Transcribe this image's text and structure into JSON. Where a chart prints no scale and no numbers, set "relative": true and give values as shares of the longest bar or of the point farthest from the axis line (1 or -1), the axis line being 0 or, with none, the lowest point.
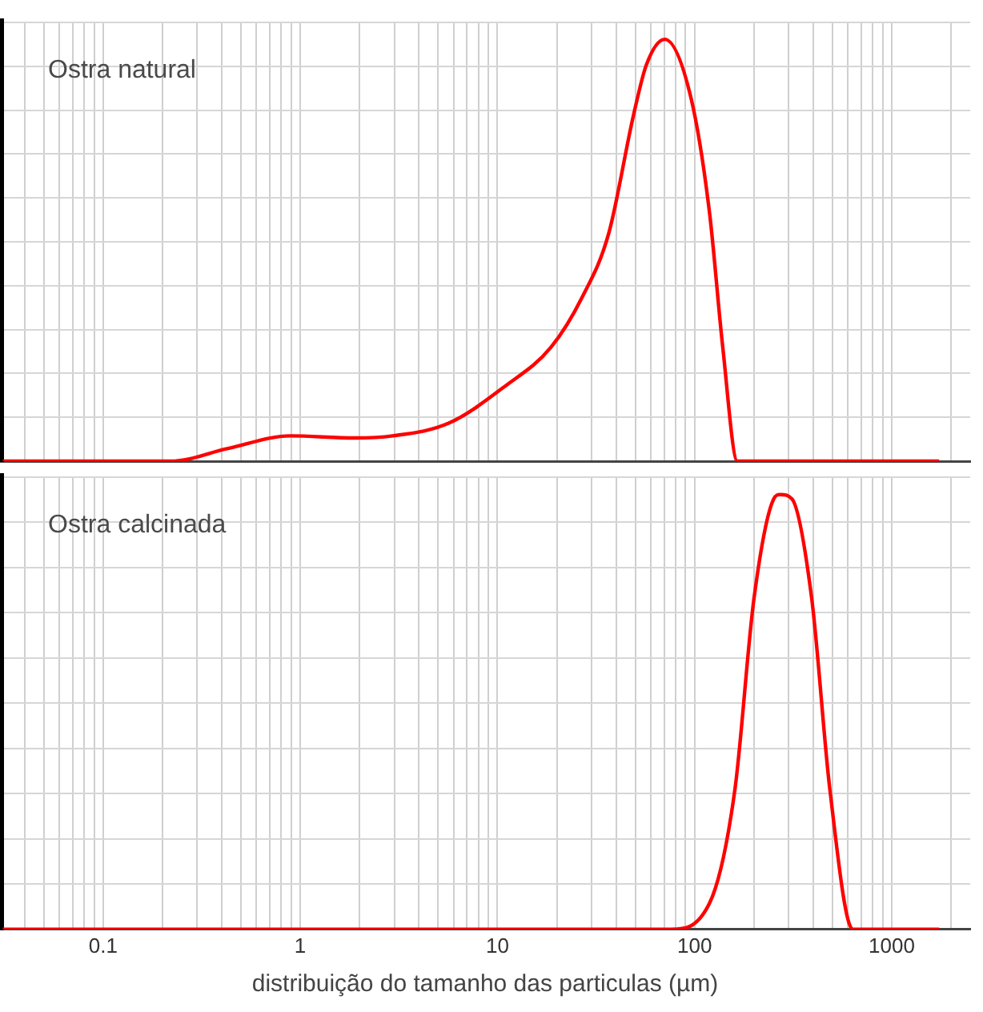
{
  "chart_data": [
    {
      "type": "line",
      "annotations": [
        "Ostra natural"
      ],
      "relative": true,
      "log": "x",
      "grid": true,
      "tick_labels": false,
      "xlim": [
        0.03,
        2500
      ],
      "xticks": [
        {
          "value": 0.04,
          "label": null
        },
        {
          "value": 0.05,
          "label": null
        },
        {
          "value": 0.06,
          "label": null
        },
        {
          "value": 0.07,
          "label": null
        },
        {
          "value": 0.08,
          "label": null
        },
        {
          "value": 0.09,
          "label": null
        },
        0.1,
        {
          "value": 0.2,
          "label": null
        },
        {
          "value": 0.3,
          "label": null
        },
        {
          "value": 0.4,
          "label": null
        },
        {
          "value": 0.5,
          "label": null
        },
        {
          "value": 0.6,
          "label": null
        },
        {
          "value": 0.7,
          "label": null
        },
        {
          "value": 0.8,
          "label": null
        },
        {
          "value": 0.9,
          "label": null
        },
        1,
        {
          "value": 2,
          "label": null
        },
        {
          "value": 3,
          "label": null
        },
        {
          "value": 4,
          "label": null
        },
        {
          "value": 5,
          "label": null
        },
        {
          "value": 6,
          "label": null
        },
        {
          "value": 7,
          "label": null
        },
        {
          "value": 8,
          "label": null
        },
        {
          "value": 9,
          "label": null
        },
        10,
        {
          "value": 20,
          "label": null
        },
        {
          "value": 30,
          "label": null
        },
        {
          "value": 40,
          "label": null
        },
        {
          "value": 50,
          "label": null
        },
        {
          "value": 60,
          "label": null
        },
        {
          "value": 70,
          "label": null
        },
        {
          "value": 80,
          "label": null
        },
        {
          "value": 90,
          "label": null
        },
        100,
        {
          "value": 200,
          "label": null
        },
        {
          "value": 300,
          "label": null
        },
        {
          "value": 400,
          "label": null
        },
        {
          "value": 500,
          "label": null
        },
        {
          "value": 600,
          "label": null
        },
        {
          "value": 700,
          "label": null
        },
        {
          "value": 800,
          "label": null
        },
        {
          "value": 900,
          "label": null
        },
        1000,
        {
          "value": 2000,
          "label": null
        }
      ],
      "series": [
        {
          "color": "#ff0000",
          "x": [
            0.031,
            0.22,
            0.43,
            0.89,
            1.89,
            2.94,
            5.66,
            11.1,
            18.7,
            27,
            36.7,
            49,
            57,
            70.6,
            96,
            119,
            139,
            165,
            1740
          ],
          "values": [
            0,
            0,
            0.03,
            0.06,
            0.055,
            0.06,
            0.09,
            0.18,
            0.27,
            0.39,
            0.54,
            0.82,
            0.94,
            1,
            0.86,
            0.59,
            0.27,
            0,
            0
          ]
        }
      ]
    },
    {
      "type": "line",
      "annotations": [
        "Ostra calcinada"
      ],
      "relative": true,
      "log": "x",
      "grid": true,
      "tick_labels": "x",
      "xlabel": "distribuição do tamanho das particulas (µm)",
      "xlim": [
        0.03,
        2500
      ],
      "xticks": [
        {
          "value": 0.04,
          "label": null
        },
        {
          "value": 0.05,
          "label": null
        },
        {
          "value": 0.06,
          "label": null
        },
        {
          "value": 0.07,
          "label": null
        },
        {
          "value": 0.08,
          "label": null
        },
        {
          "value": 0.09,
          "label": null
        },
        0.1,
        {
          "value": 0.2,
          "label": null
        },
        {
          "value": 0.3,
          "label": null
        },
        {
          "value": 0.4,
          "label": null
        },
        {
          "value": 0.5,
          "label": null
        },
        {
          "value": 0.6,
          "label": null
        },
        {
          "value": 0.7,
          "label": null
        },
        {
          "value": 0.8,
          "label": null
        },
        {
          "value": 0.9,
          "label": null
        },
        1,
        {
          "value": 2,
          "label": null
        },
        {
          "value": 3,
          "label": null
        },
        {
          "value": 4,
          "label": null
        },
        {
          "value": 5,
          "label": null
        },
        {
          "value": 6,
          "label": null
        },
        {
          "value": 7,
          "label": null
        },
        {
          "value": 8,
          "label": null
        },
        {
          "value": 9,
          "label": null
        },
        10,
        {
          "value": 20,
          "label": null
        },
        {
          "value": 30,
          "label": null
        },
        {
          "value": 40,
          "label": null
        },
        {
          "value": 50,
          "label": null
        },
        {
          "value": 60,
          "label": null
        },
        {
          "value": 70,
          "label": null
        },
        {
          "value": 80,
          "label": null
        },
        {
          "value": 90,
          "label": null
        },
        100,
        {
          "value": 200,
          "label": null
        },
        {
          "value": 300,
          "label": null
        },
        {
          "value": 400,
          "label": null
        },
        {
          "value": 500,
          "label": null
        },
        {
          "value": 600,
          "label": null
        },
        {
          "value": 700,
          "label": null
        },
        {
          "value": 800,
          "label": null
        },
        {
          "value": 900,
          "label": null
        },
        1000,
        {
          "value": 2000,
          "label": null
        }
      ],
      "series": [
        {
          "color": "#ff0000",
          "x": [
            0.031,
            76,
            119,
            160,
            200,
            252,
            272,
            312,
            393,
            486,
            636,
            1740
          ],
          "values": [
            0,
            0,
            0.06,
            0.32,
            0.76,
            0.99,
            1,
            0.99,
            0.76,
            0.32,
            0,
            0
          ]
        }
      ]
    }
  ]
}
